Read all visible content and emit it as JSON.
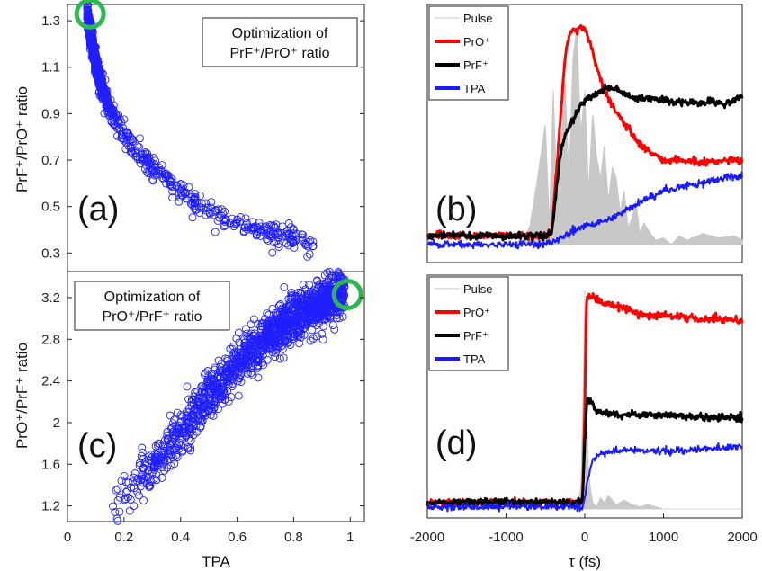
{
  "chart_data": [
    {
      "id": "a",
      "type": "scatter",
      "panel_label": "(a)",
      "annotation_lines": [
        "Optimization of",
        "PrF⁺/PrO⁺ ratio"
      ],
      "ylabel": "PrF⁺/PrO⁺ ratio",
      "xlabel": "",
      "xlim": [
        0,
        1.05
      ],
      "ylim": [
        0.22,
        1.37
      ],
      "yticks": [
        0.3,
        0.5,
        0.7,
        0.9,
        1.1,
        1.3
      ],
      "ytick_labels": [
        "0.3",
        "0.5",
        "0.7",
        "0.9",
        "1.1",
        "1.3"
      ],
      "marker_color": "#1f1fff",
      "highlight_color": "#2db84f",
      "highlight": {
        "x": 0.08,
        "y": 1.33
      },
      "trend": {
        "x": [
          0.07,
          0.08,
          0.1,
          0.12,
          0.15,
          0.2,
          0.25,
          0.3,
          0.4,
          0.5,
          0.6,
          0.7,
          0.8,
          0.87
        ],
        "y": [
          1.33,
          1.25,
          1.12,
          1.02,
          0.92,
          0.81,
          0.73,
          0.67,
          0.56,
          0.48,
          0.43,
          0.39,
          0.37,
          0.33
        ]
      }
    },
    {
      "id": "c",
      "type": "scatter",
      "panel_label": "(c)",
      "annotation_lines": [
        "Optimization of",
        "PrO⁺/PrF⁺ ratio"
      ],
      "ylabel": "PrO⁺/PrF⁺ ratio",
      "xlabel": "TPA",
      "xlim": [
        0,
        1.05
      ],
      "ylim": [
        1.05,
        3.45
      ],
      "yticks": [
        1.2,
        1.6,
        2,
        2.4,
        2.8,
        3.2
      ],
      "ytick_labels": [
        "1.2",
        "1.6",
        "2",
        "2.4",
        "2.8",
        "3.2"
      ],
      "xticks": [
        0,
        0.2,
        0.4,
        0.6,
        0.8,
        1
      ],
      "xtick_labels": [
        "0",
        "0.2",
        "0.4",
        "0.6",
        "0.8",
        "1"
      ],
      "marker_color": "#1f1fff",
      "highlight_color": "#2db84f",
      "highlight": {
        "x": 0.99,
        "y": 3.23
      },
      "trend": {
        "x": [
          0.15,
          0.2,
          0.3,
          0.4,
          0.5,
          0.6,
          0.7,
          0.8,
          0.9,
          0.97
        ],
        "y": [
          1.1,
          1.3,
          1.6,
          1.9,
          2.25,
          2.55,
          2.8,
          3.0,
          3.15,
          3.25
        ]
      }
    },
    {
      "id": "b",
      "type": "line",
      "panel_label": "(b)",
      "xlim": [
        -2000,
        2000
      ],
      "ylim": [
        0,
        1
      ],
      "legend": [
        "Pulse",
        "PrO⁺",
        "PrF⁺",
        "TPA"
      ],
      "legend_position": "top-left",
      "series": [
        {
          "name": "Pulse",
          "color": "#c8c8c8",
          "x": [
            -2000,
            -1000,
            -800,
            -700,
            -600,
            -500,
            -450,
            -400,
            -350,
            -300,
            -250,
            -200,
            -150,
            -100,
            -50,
            0,
            50,
            100,
            150,
            200,
            250,
            300,
            350,
            400,
            450,
            500,
            550,
            600,
            650,
            700,
            750,
            800,
            900,
            1000,
            1100,
            1200,
            1300,
            1500,
            1700,
            1900,
            2000
          ],
          "y": [
            0.0,
            0.0,
            0.02,
            0.08,
            0.3,
            0.55,
            0.1,
            0.7,
            0.2,
            0.45,
            0.75,
            0.3,
            0.85,
            0.98,
            0.5,
            0.7,
            0.25,
            0.6,
            0.4,
            0.3,
            0.45,
            0.2,
            0.35,
            0.3,
            0.15,
            0.25,
            0.08,
            0.12,
            0.2,
            0.05,
            0.1,
            0.07,
            0.02,
            0.03,
            0.0,
            0.04,
            0.02,
            0.05,
            0.03,
            0.04,
            0.02
          ]
        },
        {
          "name": "PrO⁺",
          "color": "#ff0000",
          "x": [
            -2000,
            -500,
            -420,
            -300,
            -250,
            -200,
            -150,
            -100,
            -50,
            0,
            50,
            100,
            150,
            200,
            300,
            400,
            500,
            600,
            700,
            800,
            900,
            1000,
            1200,
            1500,
            1800,
            2000
          ],
          "y": [
            0.04,
            0.04,
            0.06,
            0.6,
            0.85,
            0.93,
            0.97,
            0.96,
            0.98,
            0.97,
            0.93,
            0.87,
            0.8,
            0.74,
            0.65,
            0.6,
            0.55,
            0.5,
            0.45,
            0.42,
            0.4,
            0.38,
            0.38,
            0.37,
            0.38,
            0.38
          ]
        },
        {
          "name": "PrF⁺",
          "color": "#000000",
          "x": [
            -2000,
            -500,
            -420,
            -350,
            -300,
            -250,
            -200,
            -150,
            -100,
            -50,
            0,
            50,
            100,
            150,
            200,
            250,
            300,
            400,
            500,
            600,
            800,
            1000,
            1200,
            1500,
            1800,
            2000
          ],
          "y": [
            0.04,
            0.04,
            0.05,
            0.28,
            0.43,
            0.49,
            0.53,
            0.56,
            0.6,
            0.63,
            0.65,
            0.66,
            0.67,
            0.68,
            0.69,
            0.7,
            0.71,
            0.7,
            0.68,
            0.66,
            0.66,
            0.65,
            0.64,
            0.64,
            0.64,
            0.66
          ]
        },
        {
          "name": "TPA",
          "color": "#1a1aff",
          "x": [
            -2000,
            -1000,
            -600,
            -400,
            -300,
            -200,
            -100,
            0,
            200,
            400,
            600,
            800,
            1000,
            1200,
            1500,
            1800,
            2000
          ],
          "y": [
            0.0,
            0.0,
            0.0,
            0.01,
            0.03,
            0.05,
            0.07,
            0.08,
            0.1,
            0.13,
            0.17,
            0.21,
            0.24,
            0.26,
            0.28,
            0.3,
            0.31
          ]
        }
      ]
    },
    {
      "id": "d",
      "type": "line",
      "panel_label": "(d)",
      "xlabel": "τ (fs)",
      "xlim": [
        -2000,
        2000
      ],
      "ylim": [
        0,
        1
      ],
      "xticks": [
        -2000,
        -1000,
        0,
        1000,
        2000
      ],
      "xtick_labels": [
        "-2000",
        "-1000",
        "0",
        "1000",
        "2000"
      ],
      "legend": [
        "Pulse",
        "PrO⁺",
        "PrF⁺",
        "TPA"
      ],
      "legend_position": "top-left",
      "series": [
        {
          "name": "Pulse",
          "color": "#c8c8c8",
          "x": [
            -2000,
            -100,
            -50,
            -20,
            0,
            20,
            50,
            100,
            150,
            200,
            250,
            300,
            400,
            500,
            600,
            700,
            800,
            900,
            1000,
            2000
          ],
          "y": [
            0.0,
            0.0,
            0.1,
            0.55,
            0.98,
            0.5,
            0.15,
            0.03,
            0.01,
            0.05,
            0.03,
            0.06,
            0.02,
            0.04,
            0.02,
            0.01,
            0.02,
            0.01,
            0.0,
            0.0
          ]
        },
        {
          "name": "PrO⁺",
          "color": "#ff0000",
          "x": [
            -2000,
            -30,
            0,
            20,
            50,
            100,
            200,
            400,
            600,
            800,
            1000,
            1200,
            1500,
            1800,
            2000
          ],
          "y": [
            0.03,
            0.03,
            0.45,
            0.93,
            0.96,
            0.95,
            0.93,
            0.91,
            0.89,
            0.87,
            0.87,
            0.86,
            0.85,
            0.85,
            0.84
          ]
        },
        {
          "name": "PrF⁺",
          "color": "#000000",
          "x": [
            -2000,
            -30,
            0,
            30,
            80,
            150,
            300,
            600,
            1000,
            1500,
            2000
          ],
          "y": [
            0.03,
            0.03,
            0.3,
            0.5,
            0.48,
            0.44,
            0.43,
            0.42,
            0.42,
            0.41,
            0.41
          ]
        },
        {
          "name": "TPA",
          "color": "#1a1aff",
          "x": [
            -2000,
            -30,
            0,
            50,
            100,
            200,
            300,
            500,
            800,
            1200,
            1600,
            2000
          ],
          "y": [
            0.01,
            0.01,
            0.05,
            0.15,
            0.22,
            0.25,
            0.26,
            0.26,
            0.26,
            0.26,
            0.27,
            0.28
          ]
        }
      ]
    }
  ]
}
